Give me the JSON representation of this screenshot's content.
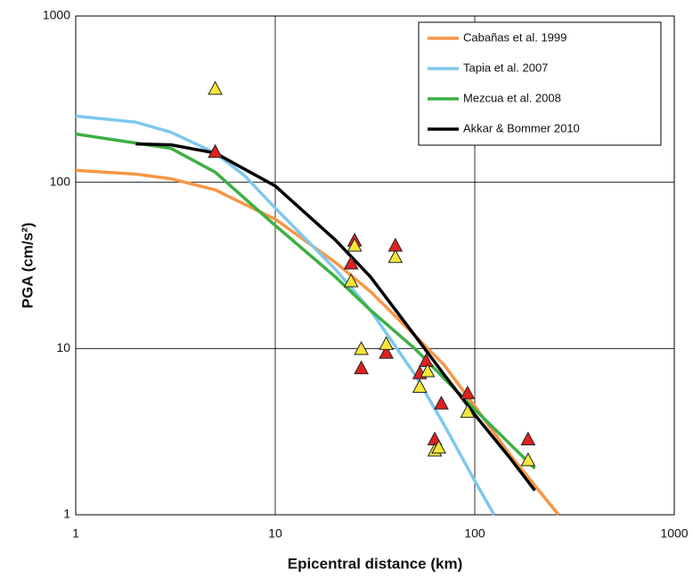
{
  "chart_data": {
    "type": "line",
    "x_label": "Epicentral distance (km)",
    "y_label": "PGA (cm/s²)",
    "xscale": "log",
    "yscale": "log",
    "xlim": [
      1,
      1000
    ],
    "ylim": [
      1,
      1000
    ],
    "xticks": [
      1,
      10,
      100,
      1000
    ],
    "yticks": [
      1,
      10,
      100,
      1000
    ],
    "grid": true,
    "legend": "top-right",
    "series": [
      {
        "name": "Cabañas et al. 1999",
        "color": "#f79646",
        "x": [
          1,
          2,
          3,
          5,
          10,
          20,
          30,
          50,
          70,
          100,
          150,
          200,
          263
        ],
        "values": [
          118,
          112,
          105,
          90,
          60,
          33,
          22,
          12,
          8,
          4.5,
          2.3,
          1.5,
          1
        ]
      },
      {
        "name": "Tapia et al. 2007",
        "color": "#7ec8ec",
        "x": [
          1,
          2,
          3,
          5,
          7,
          10,
          20,
          30,
          50,
          70,
          100,
          125
        ],
        "values": [
          250,
          230,
          200,
          150,
          110,
          70,
          30,
          17,
          7,
          3.5,
          1.6,
          1
        ]
      },
      {
        "name": "Mezcua et al. 2008",
        "color": "#3cb043",
        "x": [
          1,
          3,
          5,
          10,
          20,
          30,
          50,
          100,
          200
        ],
        "values": [
          195,
          160,
          115,
          55,
          27,
          17,
          10,
          4.3,
          1.9
        ]
      },
      {
        "name": "Akkar & Bommer 2010",
        "color": "#000000",
        "x": [
          2,
          3,
          5,
          10,
          20,
          30,
          50,
          70,
          100,
          150,
          200
        ],
        "values": [
          170,
          168,
          150,
          95,
          45,
          27,
          12,
          7,
          4,
          2.2,
          1.4
        ]
      },
      {
        "marker": "triangle",
        "color": "#e02020",
        "x": [
          5,
          25,
          24,
          27,
          40,
          36,
          53,
          57,
          68,
          63,
          92,
          185
        ],
        "values": [
          150,
          44,
          32,
          7.5,
          41,
          9.3,
          7,
          8.3,
          4.6,
          2.8,
          5.3,
          2.8
        ]
      },
      {
        "marker": "triangle",
        "color": "#f5e63a",
        "x": [
          5,
          25,
          24,
          27,
          40,
          36,
          53,
          58,
          63,
          66,
          92,
          185
        ],
        "values": [
          360,
          41,
          25,
          9.8,
          35,
          10.5,
          5.8,
          7.2,
          2.4,
          2.5,
          4.1,
          2.1
        ]
      }
    ]
  }
}
